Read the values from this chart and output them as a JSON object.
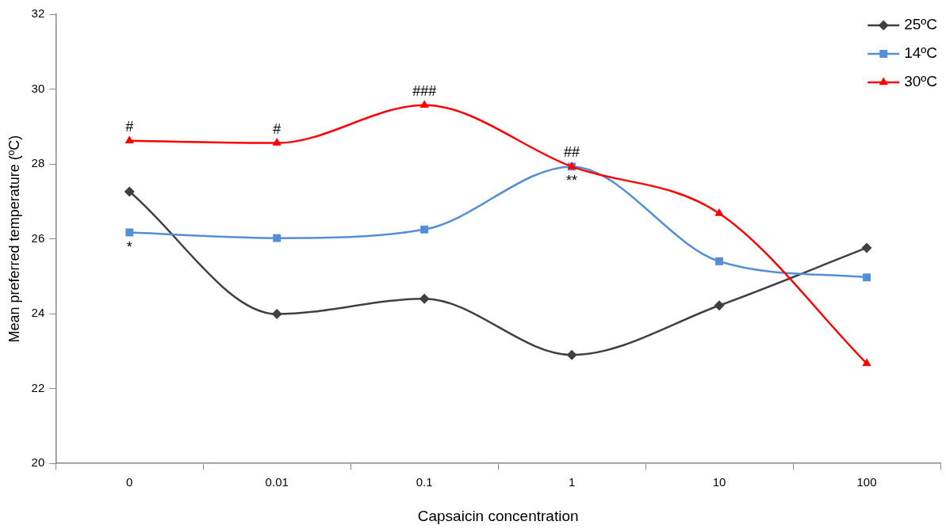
{
  "chart_data": {
    "type": "line",
    "xlabel": "Capsaicin concentration",
    "ylabel": "Mean preferred temperature (ºC)",
    "categories": [
      "0",
      "0.01",
      "0.1",
      "1",
      "10",
      "100"
    ],
    "series": [
      {
        "name": "25ºC",
        "color": "#404040",
        "marker": "diamond",
        "values": [
          27.26,
          23.99,
          24.4,
          22.9,
          24.22,
          25.76
        ]
      },
      {
        "name": "14ºC",
        "color": "#558ed5",
        "marker": "square",
        "values": [
          26.17,
          26.02,
          26.25,
          27.93,
          25.4,
          24.97
        ]
      },
      {
        "name": "30ºC",
        "color": "#ff0000",
        "marker": "triangle",
        "values": [
          28.62,
          28.56,
          29.57,
          27.93,
          26.68,
          22.67
        ]
      }
    ],
    "ylim": [
      20,
      32
    ],
    "yticks": [
      20,
      22,
      24,
      26,
      28,
      30,
      32
    ],
    "grid": false,
    "legend": "top right",
    "annotations": [
      {
        "text": "#",
        "x": "0",
        "y": 28.62
      },
      {
        "text": "#",
        "x": "0.01",
        "y": 28.56
      },
      {
        "text": "###",
        "x": "0.1",
        "y": 29.57
      },
      {
        "text": "##",
        "x": "1",
        "y": 27.93
      },
      {
        "text": "*",
        "x": "0",
        "y": 26.17
      },
      {
        "text": "**",
        "x": "1",
        "y": 27.93
      }
    ]
  }
}
